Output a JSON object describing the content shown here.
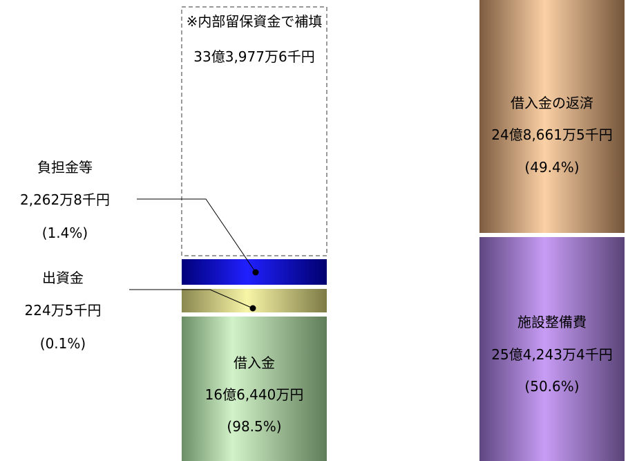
{
  "chart_data": {
    "type": "stacked-bar",
    "unit": "円",
    "bars": [
      {
        "segments": [
          {
            "name": "借入金",
            "amount_label": "16億6,440万円",
            "percent_label": "(98.5%)",
            "value_yen": 1664400000,
            "percent": 98.5,
            "color": "#a9d9a0"
          },
          {
            "name": "出資金",
            "amount_label": "224万5千円",
            "percent_label": "(0.1%)",
            "value_yen": 2245000,
            "percent": 0.1,
            "color": "#e8e69a"
          },
          {
            "name": "負担金等",
            "amount_label": "2,262万8千円",
            "percent_label": "(1.4%)",
            "value_yen": 22628000,
            "percent": 1.4,
            "color": "#1414d8"
          }
        ],
        "supplement": {
          "name": "※内部留保資金で補填",
          "amount_label": "33億3,977万6千円",
          "value_yen": 3339776000
        }
      },
      {
        "segments": [
          {
            "name": "施設整備費",
            "amount_label": "25億4,243万4千円",
            "percent_label": "(50.6%)",
            "value_yen": 2542434000,
            "percent": 50.6,
            "color": "#b48ee2"
          },
          {
            "name": "借入金の返済",
            "amount_label": "24億8,661万5千円",
            "percent_label": "(49.4%)",
            "value_yen": 2486615000,
            "percent": 49.4,
            "color": "#e8b98e"
          }
        ]
      }
    ]
  }
}
